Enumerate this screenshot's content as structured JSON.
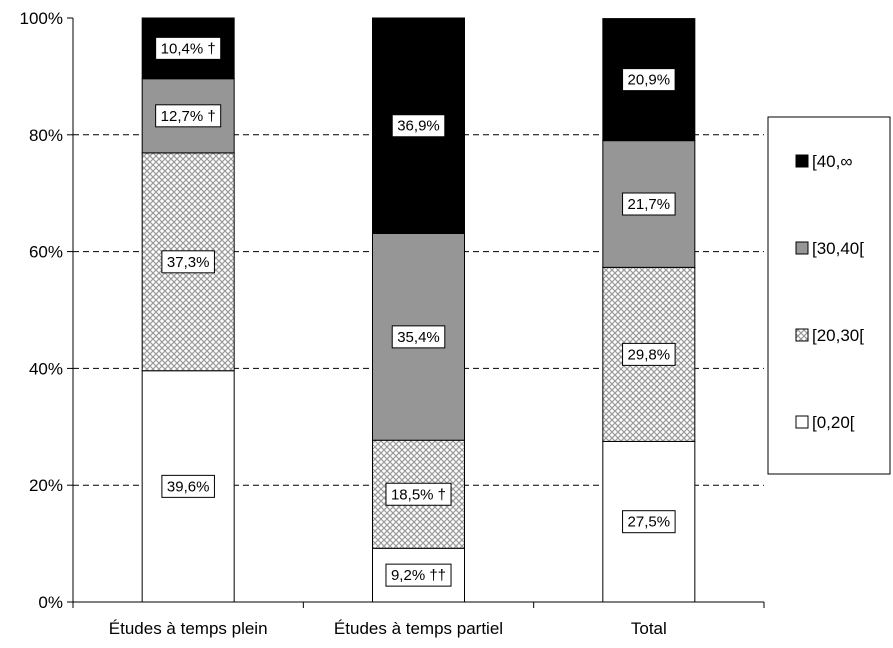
{
  "chart_data": {
    "type": "bar",
    "stacked": true,
    "percent_stacked": true,
    "categories": [
      "Études à temps plein",
      "Études à temps partiel",
      "Total"
    ],
    "series": [
      {
        "name": "[0,20[",
        "values": [
          39.6,
          9.2,
          27.5
        ],
        "labels": [
          "39,6%",
          "9,2% ††",
          "27,5%"
        ],
        "color": "#ffffff",
        "pattern": "none"
      },
      {
        "name": "[20,30[",
        "values": [
          37.3,
          18.5,
          29.8
        ],
        "labels": [
          "37,3%",
          "18,5% †",
          "29,8%"
        ],
        "color": "#d9d9d9",
        "pattern": "crosshatch"
      },
      {
        "name": "[30,40[",
        "values": [
          12.7,
          35.4,
          21.7
        ],
        "labels": [
          "12,7% †",
          "35,4%",
          "21,7%"
        ],
        "color": "#969696",
        "pattern": "none"
      },
      {
        "name": "[40,∞",
        "values": [
          10.4,
          36.9,
          20.9
        ],
        "labels": [
          "10,4% †",
          "36,9%",
          "20,9%"
        ],
        "color": "#000000",
        "pattern": "none"
      }
    ],
    "y_ticks": [
      "0%",
      "20%",
      "40%",
      "60%",
      "80%",
      "100%"
    ],
    "y_tick_values": [
      0,
      20,
      40,
      60,
      80,
      100
    ],
    "ylim": [
      0,
      100
    ],
    "grid": "horizontal dashed",
    "legend_position": "right",
    "legend_order": [
      "[40,∞",
      "[30,40[",
      "[20,30[",
      "[0,20["
    ],
    "title": "",
    "xlabel": "",
    "ylabel": ""
  }
}
